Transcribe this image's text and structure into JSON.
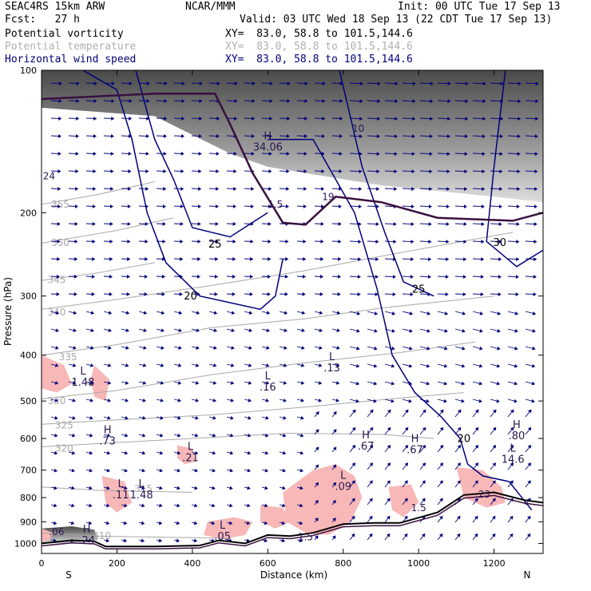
{
  "header": {
    "model": "SEAC4RS 15km ARW",
    "forecast": "Fcst:   27 h",
    "center": "NCAR/MMM",
    "init": "Init: 00 UTC Tue 17 Sep 13",
    "valid": "Valid: 03 UTC Wed 18 Sep 13 (22 CDT Tue 17 Sep 13)",
    "fields": [
      {
        "name": "Potential vorticity",
        "xy": "XY=  83.0, 58.8 to 101.5,144.6",
        "color": "#000000"
      },
      {
        "name": "Potential temperature",
        "xy": "XY=  83.0, 58.8 to 101.5,144.6",
        "color": "#b0b0b0"
      },
      {
        "name": "Horizontal wind speed",
        "xy": "XY=  83.0, 58.8 to 101.5,144.6",
        "color": "#00007a"
      }
    ]
  },
  "chart_data": {
    "type": "cross-section",
    "xlabel": "Distance (km)",
    "ylabel": "Pressure (hPa)",
    "x_ticks": [
      0,
      200,
      400,
      600,
      800,
      1000,
      1200
    ],
    "y_ticks": [
      100,
      200,
      300,
      400,
      500,
      600,
      700,
      800,
      900,
      1000
    ],
    "xlim": [
      0,
      1330
    ],
    "ylim": [
      100,
      1050
    ],
    "y_scale": "log",
    "endpoints": {
      "left": "S",
      "right": "N"
    },
    "colors": {
      "pv_fill": "#f8b8b8",
      "theta": "#a8a8a8",
      "wind": "#00007a",
      "terrain": "#000000",
      "tropopause": "#3a1040"
    },
    "theta_contours": [
      {
        "value": 310,
        "points": [
          [
            0,
            950
          ],
          [
            150,
            965
          ],
          [
            250,
            968
          ],
          [
            500,
            975
          ]
        ],
        "label_at": [
          160,
          980
        ]
      },
      {
        "value": 315,
        "points": [
          [
            0,
            760
          ],
          [
            150,
            772
          ],
          [
            400,
            780
          ]
        ],
        "label_at": [
          270,
          778
        ]
      },
      {
        "value": 320,
        "points": [
          [
            0,
            625
          ],
          [
            200,
            612
          ],
          [
            400,
            600
          ],
          [
            650,
            585
          ],
          [
            900,
            588
          ],
          [
            1040,
            600
          ]
        ],
        "label_at": [
          60,
          640
        ]
      },
      {
        "value": 325,
        "points": [
          [
            0,
            560
          ],
          [
            200,
            548
          ],
          [
            450,
            535
          ],
          [
            700,
            515
          ],
          [
            960,
            492
          ],
          [
            1120,
            480
          ]
        ],
        "label_at": [
          60,
          572
        ]
      },
      {
        "value": 330,
        "points": [
          [
            0,
            495
          ],
          [
            200,
            475
          ],
          [
            450,
            440
          ],
          [
            700,
            415
          ],
          [
            950,
            395
          ],
          [
            1150,
            375
          ]
        ],
        "label_at": [
          40,
          508
        ]
      },
      {
        "value": 335,
        "points": [
          [
            0,
            400
          ],
          [
            200,
            380
          ],
          [
            450,
            350
          ],
          [
            700,
            335
          ],
          [
            900,
            318
          ],
          [
            1200,
            300
          ]
        ],
        "label_at": [
          70,
          410
        ]
      },
      {
        "value": 340,
        "points": [
          [
            0,
            320
          ],
          [
            200,
            305
          ],
          [
            450,
            285
          ],
          [
            700,
            265
          ],
          [
            950,
            243
          ],
          [
            1250,
            220
          ]
        ],
        "label_at": [
          40,
          330
        ]
      },
      {
        "value": 345,
        "points": [
          [
            0,
            278
          ],
          [
            150,
            268
          ],
          [
            300,
            255
          ]
        ],
        "label_at": [
          40,
          282
        ]
      },
      {
        "value": 350,
        "points": [
          [
            0,
            232
          ],
          [
            200,
            218
          ],
          [
            350,
            205
          ]
        ],
        "label_at": [
          50,
          235
        ]
      },
      {
        "value": 355,
        "points": [
          [
            0,
            192
          ],
          [
            150,
            183
          ],
          [
            300,
            172
          ]
        ],
        "label_at": [
          50,
          195
        ]
      }
    ],
    "wind_contours": [
      {
        "value": 20,
        "points": [
          [
            110,
            100
          ],
          [
            200,
            110
          ],
          [
            240,
            140
          ],
          [
            280,
            200
          ],
          [
            330,
            255
          ],
          [
            420,
            300
          ],
          [
            580,
            320
          ],
          [
            620,
            300
          ],
          [
            640,
            250
          ]
        ],
        "label_at": [
          395,
          305
        ]
      },
      {
        "value": 25,
        "points": [
          [
            250,
            100
          ],
          [
            300,
            140
          ],
          [
            350,
            170
          ],
          [
            400,
            215
          ],
          [
            500,
            225
          ],
          [
            600,
            200
          ]
        ],
        "label_at": [
          460,
          237
        ]
      },
      {
        "value": 25,
        "points": [
          [
            790,
            100
          ],
          [
            850,
            160
          ],
          [
            910,
            220
          ],
          [
            960,
            280
          ],
          [
            1040,
            300
          ]
        ],
        "label_at": [
          1000,
          295
        ]
      },
      {
        "value": 20,
        "points": [
          [
            600,
            140
          ],
          [
            720,
            140
          ],
          [
            830,
            200
          ],
          [
            890,
            290
          ],
          [
            930,
            400
          ],
          [
            990,
            480
          ],
          [
            1060,
            540
          ],
          [
            1110,
            600
          ],
          [
            1130,
            680
          ],
          [
            1170,
            720
          ],
          [
            1240,
            740
          ],
          [
            1300,
            850
          ]
        ],
        "label_at": [
          1120,
          610
        ]
      },
      {
        "value": 30,
        "points": [
          [
            1230,
            100
          ],
          [
            1200,
            160
          ],
          [
            1180,
            230
          ],
          [
            1260,
            260
          ],
          [
            1330,
            240
          ]
        ],
        "label_at": [
          1215,
          235
        ]
      }
    ],
    "pv_regions": [
      {
        "points": [
          [
            0,
            400
          ],
          [
            60,
            420
          ],
          [
            80,
            460
          ],
          [
            40,
            480
          ],
          [
            0,
            470
          ]
        ]
      },
      {
        "points": [
          [
            140,
            420
          ],
          [
            180,
            450
          ],
          [
            170,
            500
          ],
          [
            140,
            490
          ],
          [
            130,
            450
          ]
        ]
      },
      {
        "points": [
          [
            360,
            620
          ],
          [
            400,
            630
          ],
          [
            410,
            670
          ],
          [
            380,
            680
          ],
          [
            360,
            660
          ]
        ]
      },
      {
        "points": [
          [
            160,
            720
          ],
          [
            220,
            740
          ],
          [
            240,
            820
          ],
          [
            200,
            860
          ],
          [
            170,
            820
          ]
        ]
      },
      {
        "points": [
          [
            640,
            780
          ],
          [
            720,
            700
          ],
          [
            780,
            680
          ],
          [
            830,
            720
          ],
          [
            850,
            800
          ],
          [
            820,
            900
          ],
          [
            760,
            960
          ],
          [
            700,
            950
          ],
          [
            650,
            900
          ]
        ]
      },
      {
        "points": [
          [
            580,
            830
          ],
          [
            640,
            840
          ],
          [
            660,
            900
          ],
          [
            620,
            930
          ],
          [
            580,
            900
          ]
        ]
      },
      {
        "points": [
          [
            440,
            900
          ],
          [
            510,
            880
          ],
          [
            560,
            900
          ],
          [
            540,
            960
          ],
          [
            480,
            980
          ],
          [
            430,
            960
          ]
        ]
      },
      {
        "points": [
          [
            1100,
            690
          ],
          [
            1170,
            700
          ],
          [
            1220,
            760
          ],
          [
            1230,
            820
          ],
          [
            1180,
            840
          ],
          [
            1120,
            800
          ]
        ]
      },
      {
        "points": [
          [
            920,
            760
          ],
          [
            980,
            750
          ],
          [
            1000,
            820
          ],
          [
            960,
            880
          ],
          [
            930,
            850
          ]
        ]
      },
      {
        "points": [
          [
            0,
            930
          ],
          [
            30,
            950
          ],
          [
            20,
            985
          ],
          [
            0,
            990
          ]
        ]
      }
    ],
    "shaded_regions": [
      {
        "points": [
          [
            0,
            100
          ],
          [
            1330,
            100
          ],
          [
            1330,
            190
          ],
          [
            1200,
            185
          ],
          [
            900,
            175
          ],
          [
            700,
            165
          ],
          [
            600,
            160
          ],
          [
            500,
            150
          ],
          [
            300,
            125
          ],
          [
            0,
            120
          ]
        ]
      },
      {
        "points": [
          [
            0,
            930
          ],
          [
            80,
            920
          ],
          [
            140,
            935
          ],
          [
            150,
            985
          ],
          [
            60,
            1000
          ],
          [
            0,
            1000
          ]
        ]
      }
    ],
    "tropopause": {
      "points": [
        [
          0,
          115
        ],
        [
          300,
          112
        ],
        [
          460,
          112
        ],
        [
          500,
          130
        ],
        [
          560,
          165
        ],
        [
          640,
          210
        ],
        [
          700,
          212
        ],
        [
          780,
          185
        ],
        [
          900,
          190
        ],
        [
          1050,
          205
        ],
        [
          1250,
          208
        ],
        [
          1330,
          200
        ]
      ]
    },
    "terrain": {
      "points": [
        [
          0,
          1000
        ],
        [
          80,
          985
        ],
        [
          140,
          990
        ],
        [
          170,
          1015
        ],
        [
          300,
          1015
        ],
        [
          420,
          1010
        ],
        [
          470,
          985
        ],
        [
          540,
          1000
        ],
        [
          600,
          960
        ],
        [
          660,
          965
        ],
        [
          720,
          950
        ],
        [
          800,
          910
        ],
        [
          880,
          905
        ],
        [
          950,
          905
        ],
        [
          1050,
          860
        ],
        [
          1120,
          790
        ],
        [
          1200,
          780
        ],
        [
          1280,
          810
        ],
        [
          1330,
          820
        ]
      ]
    },
    "pv_labels": [
      {
        "text": "L",
        "value": "1.48",
        "x": 110,
        "y": 440
      },
      {
        "text": "H",
        "value": ".73",
        "x": 175,
        "y": 585
      },
      {
        "text": "L",
        "value": ".21",
        "x": 395,
        "y": 635
      },
      {
        "text": "L",
        "value": ".11",
        "x": 210,
        "y": 760
      },
      {
        "text": "L",
        "value": "1.48",
        "x": 265,
        "y": 760
      },
      {
        "text": "L",
        "value": ".16",
        "x": 600,
        "y": 450
      },
      {
        "text": "L",
        "value": ".13",
        "x": 770,
        "y": 410
      },
      {
        "text": "H",
        "value": ".67",
        "x": 860,
        "y": 600
      },
      {
        "text": "H",
        "value": ".67",
        "x": 990,
        "y": 610
      },
      {
        "text": "L",
        "value": ".09",
        "x": 800,
        "y": 730
      },
      {
        "text": "H",
        "value": ".80",
        "x": 1260,
        "y": 570
      },
      {
        "text": "L",
        "value": "14.6",
        "x": 1250,
        "y": 640
      },
      {
        "text": "L",
        "value": ".05",
        "x": 480,
        "y": 930
      },
      {
        "text": "H",
        "value": "34.06",
        "x": 600,
        "y": 140
      },
      {
        "text": "H",
        "value": ".24",
        "x": 120,
        "y": 950
      }
    ],
    "extra_labels": [
      {
        "text": "24",
        "x": 20,
        "y": 170
      },
      {
        "text": "1.5",
        "x": 620,
        "y": 195
      },
      {
        "text": "19",
        "x": 760,
        "y": 188
      },
      {
        "text": "1.5",
        "x": 700,
        "y": 985
      },
      {
        "text": "1.5",
        "x": 1000,
        "y": 855
      },
      {
        "text": ".23",
        "x": 1170,
        "y": 800
      },
      {
        "text": ".06",
        "x": 40,
        "y": 960
      },
      {
        "text": "10",
        "x": 840,
        "y": 135
      }
    ]
  }
}
